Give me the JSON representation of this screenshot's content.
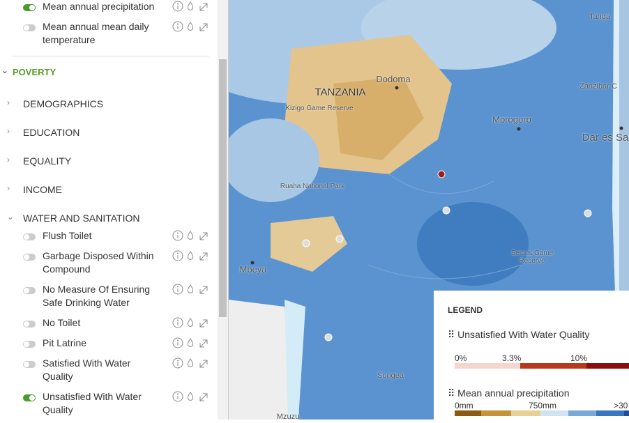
{
  "sidebar": {
    "top_layers": [
      {
        "label": "Mean annual precipitation",
        "on": true
      },
      {
        "label": "Mean annual mean daily temperature",
        "on": false
      }
    ],
    "section": "POVERTY",
    "categories": [
      "DEMOGRAPHICS",
      "EDUCATION",
      "EQUALITY",
      "INCOME",
      "WATER AND SANITATION"
    ],
    "layers": [
      {
        "label": "Flush Toilet",
        "on": false
      },
      {
        "label": "Garbage Disposed Within Compound",
        "on": false
      },
      {
        "label": "No Measure Of Ensuring Safe Drinking Water",
        "on": false
      },
      {
        "label": "No Toilet",
        "on": false
      },
      {
        "label": "Pit Latrine",
        "on": false
      },
      {
        "label": "Satisfied With Water Quality",
        "on": false
      },
      {
        "label": "Unsatisfied With Water Quality",
        "on": true
      }
    ]
  },
  "map": {
    "labels": [
      "Tanga",
      "TANZANIA",
      "Dodoma",
      "Kizigo Game Reserve",
      "Morogoro",
      "Zanzibar C",
      "Dar es Sa",
      "Ruaha National Park",
      "Selous Game Reserve",
      "Mbeya",
      "Songea",
      "Mzuzu"
    ]
  },
  "legend": {
    "title": "LEGEND",
    "items": [
      {
        "name": "Unsatisfied With Water Quality",
        "labels": [
          "0%",
          "3.3%",
          "10%"
        ]
      },
      {
        "name": "Mean annual precipitation",
        "labels": [
          "0mm",
          "750mm",
          ">30"
        ]
      }
    ]
  }
}
